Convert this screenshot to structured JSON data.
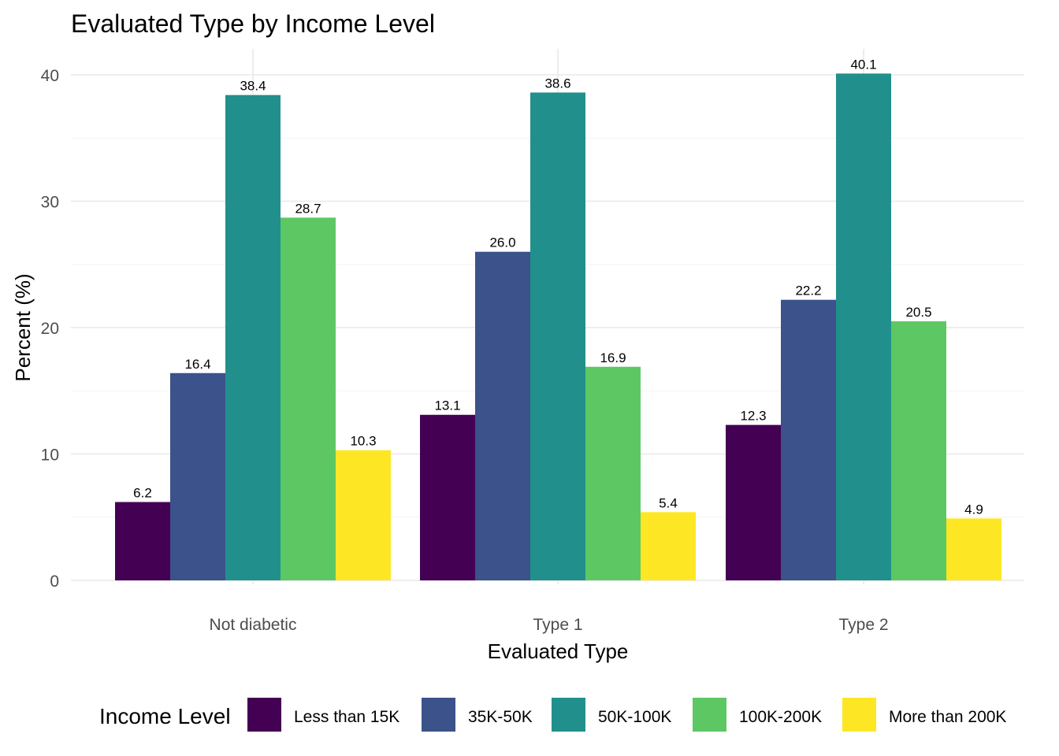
{
  "chart_data": {
    "type": "bar",
    "title": "Evaluated Type by Income Level",
    "xlabel": "Evaluated Type",
    "ylabel": "Percent (%)",
    "categories": [
      "Not diabetic",
      "Type 1",
      "Type 2"
    ],
    "series": [
      {
        "name": "Less than 15K",
        "color": "#440154",
        "values": [
          6.2,
          13.1,
          12.3
        ],
        "labels": [
          "6.2",
          "13.1",
          "12.3"
        ]
      },
      {
        "name": "35K-50K",
        "color": "#3b528b",
        "values": [
          16.4,
          26.0,
          22.2
        ],
        "labels": [
          "16.4",
          "26.0",
          "22.2"
        ]
      },
      {
        "name": "50K-100K",
        "color": "#21908c",
        "values": [
          38.4,
          38.6,
          40.1
        ],
        "labels": [
          "38.4",
          "38.6",
          "40.1"
        ]
      },
      {
        "name": "100K-200K",
        "color": "#5dc863",
        "values": [
          28.7,
          16.9,
          20.5
        ],
        "labels": [
          "28.7",
          "16.9",
          "20.5"
        ]
      },
      {
        "name": "More than 200K",
        "color": "#fde725",
        "values": [
          10.3,
          5.4,
          4.9
        ],
        "labels": [
          "10.3",
          "5.4",
          "4.9"
        ]
      }
    ],
    "y_ticks": [
      0,
      10,
      20,
      30,
      40
    ],
    "ylim": [
      0,
      42.1
    ],
    "grid": true,
    "legend": {
      "title": "Income Level",
      "position": "bottom"
    }
  }
}
